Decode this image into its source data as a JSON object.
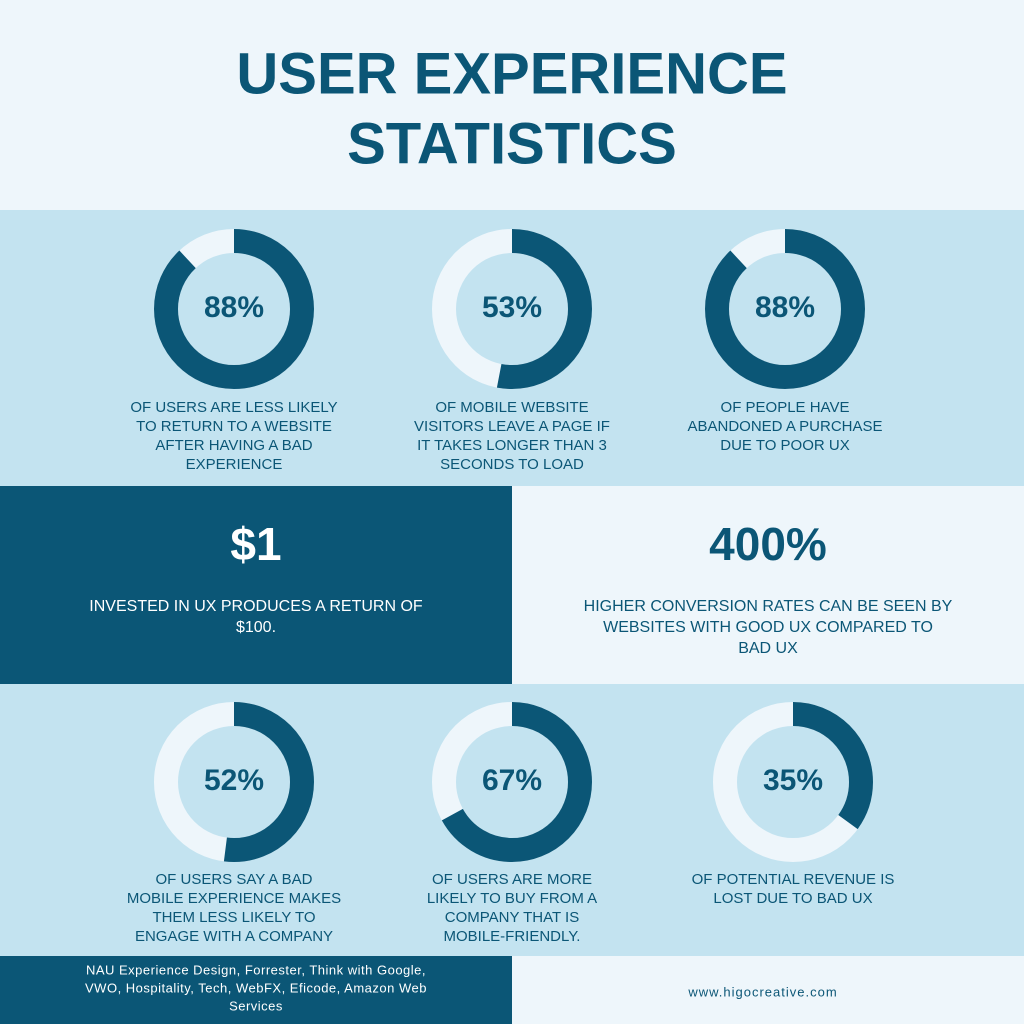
{
  "header": {
    "title_lines": [
      "USER EXPERIENCE",
      "STATISTICS"
    ]
  },
  "stats": [
    {
      "value": 88,
      "label": "88%",
      "text_lines": [
        "OF USERS ARE LESS LIKELY",
        "TO RETURN TO A WEBSITE",
        "AFTER HAVING A BAD",
        "EXPERIENCE"
      ]
    },
    {
      "value": 53,
      "label": "53%",
      "text_lines": [
        "OF MOBILE WEBSITE",
        "VISITORS LEAVE A PAGE IF",
        "IT TAKES LONGER THAN 3",
        "SECONDS TO LOAD"
      ]
    },
    {
      "value": 88,
      "label": "88%",
      "text_lines": [
        "OF PEOPLE HAVE",
        "ABANDONED A PURCHASE",
        "DUE TO POOR UX"
      ]
    },
    {
      "value": 52,
      "label": "52%",
      "text_lines": [
        "OF USERS SAY A BAD",
        "MOBILE EXPERIENCE MAKES",
        "THEM LESS LIKELY TO",
        "ENGAGE WITH A COMPANY"
      ]
    },
    {
      "value": 67,
      "label": "67%",
      "text_lines": [
        "OF USERS ARE MORE",
        "LIKELY TO BUY FROM A",
        "COMPANY THAT IS",
        "MOBILE-FRIENDLY."
      ]
    },
    {
      "value": 35,
      "label": "35%",
      "text_lines": [
        "OF POTENTIAL REVENUE IS",
        "LOST DUE TO BAD UX"
      ]
    }
  ],
  "highlights": [
    {
      "headline": "$1",
      "text_lines": [
        "INVESTED IN UX PRODUCES A RETURN OF",
        "$100."
      ]
    },
    {
      "headline": "400%",
      "text_lines": [
        "HIGHER CONVERSION RATES CAN BE SEEN BY",
        "WEBSITES WITH GOOD UX COMPARED TO",
        "BAD UX"
      ]
    }
  ],
  "footer": {
    "source_lines": [
      "NAU Experience Design, Forrester, Think with Google,",
      "VWO, Hospitality, Tech, WebFX,  Eficode, Amazon Web",
      "Services"
    ],
    "url": "www.higocreative.com"
  }
}
